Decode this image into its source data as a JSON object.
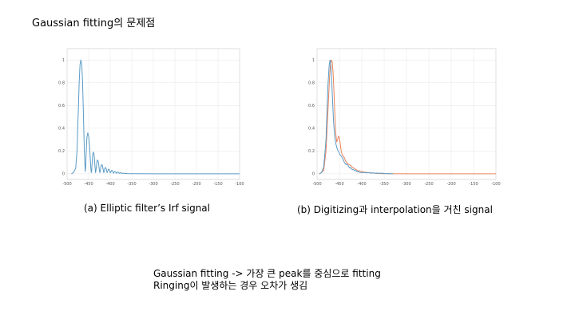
{
  "slide": {
    "title": "Gaussian fitting의 문제점",
    "caption_a": "(a) Elliptic filter’s Irf signal",
    "caption_b": "(b) Digitizing과 interpolation을 거친 signal",
    "note_line1": "Gaussian fitting -> 가장 큰 peak를 중심으로 fitting",
    "note_line2": "Ringing이 발생하는 경우 오차가 생김"
  },
  "colors": {
    "blue": "#5b9bc6",
    "orange": "#e8835a",
    "grid": "#e6e6e6",
    "axis": "#c8c8c8"
  },
  "chart_data": [
    {
      "type": "line",
      "xlim": [
        -500,
        -100
      ],
      "ylim": [
        -0.05,
        1.1
      ],
      "grid": true,
      "xticks": [
        -500,
        -450,
        -400,
        -350,
        -300,
        -250,
        -200,
        -150,
        -100
      ],
      "xtick_labels": [
        "-500",
        "-450",
        "-400",
        "-350",
        "-300",
        "-250",
        "-200",
        "-150",
        "-100"
      ],
      "yticks": [
        0,
        0.2,
        0.4,
        0.6,
        0.8,
        1
      ],
      "ytick_labels": [
        "0",
        "0.2",
        "0.4",
        "0.6",
        "0.8",
        "1"
      ],
      "series": [
        {
          "color": "#5b9bc6",
          "x": [
            -490,
            -485,
            -480,
            -477,
            -474,
            -472,
            -470,
            -468,
            -466,
            -464,
            -462,
            -460,
            -458,
            -457,
            -456,
            -455,
            -454,
            -452,
            -450,
            -448,
            -446,
            -445,
            -444,
            -443,
            -442,
            -441,
            -440,
            -439,
            -438,
            -437,
            -436,
            -435,
            -434,
            -433,
            -432,
            -431,
            -430,
            -429,
            -428,
            -427,
            -426,
            -425,
            -424,
            -423,
            -422,
            -421,
            -420,
            -419,
            -418,
            -417,
            -416,
            -415,
            -414,
            -413,
            -412,
            -411,
            -410,
            -409,
            -408,
            -407,
            -406,
            -405,
            -404,
            -403,
            -402,
            -401,
            -400,
            -399,
            -398,
            -397,
            -396,
            -395,
            -394,
            -393,
            -392,
            -391,
            -390,
            -389,
            -388,
            -387,
            -386,
            -385,
            -384,
            -383,
            -382,
            -381,
            -380,
            -379,
            -378,
            -377,
            -376,
            -375,
            -374,
            -373,
            -372,
            -371,
            -370,
            -368,
            -366,
            -364,
            -362,
            -360,
            -355,
            -350,
            -300,
            -250,
            -200,
            -150,
            -100
          ],
          "y": [
            0,
            0.01,
            0.05,
            0.2,
            0.55,
            0.8,
            0.96,
            1,
            0.96,
            0.8,
            0.5,
            0.2,
            0.02,
            0.05,
            0.15,
            0.25,
            0.32,
            0.36,
            0.33,
            0.25,
            0.12,
            0.05,
            0.01,
            0.03,
            0.09,
            0.15,
            0.18,
            0.19,
            0.18,
            0.15,
            0.1,
            0.05,
            0.01,
            0.03,
            0.07,
            0.1,
            0.12,
            0.12,
            0.11,
            0.09,
            0.06,
            0.03,
            0.01,
            0.02,
            0.05,
            0.07,
            0.08,
            0.08,
            0.07,
            0.05,
            0.03,
            0.01,
            0.02,
            0.04,
            0.05,
            0.055,
            0.05,
            0.04,
            0.02,
            0.01,
            0.02,
            0.03,
            0.04,
            0.04,
            0.035,
            0.025,
            0.01,
            0.01,
            0.02,
            0.028,
            0.03,
            0.028,
            0.02,
            0.01,
            0.005,
            0.012,
            0.018,
            0.02,
            0.018,
            0.012,
            0.005,
            0.005,
            0.01,
            0.014,
            0.015,
            0.013,
            0.008,
            0.003,
            0.004,
            0.008,
            0.01,
            0.009,
            0.006,
            0.002,
            0.003,
            0.005,
            0.006,
            0.004,
            0.002,
            0.003,
            0.003,
            0.002,
            0.001,
            0.001,
            0,
            0,
            0,
            0,
            0
          ]
        }
      ]
    },
    {
      "type": "line",
      "xlim": [
        -500,
        -100
      ],
      "ylim": [
        -0.05,
        1.1
      ],
      "grid": true,
      "xticks": [
        -500,
        -450,
        -400,
        -350,
        -300,
        -250,
        -200,
        -150,
        -100
      ],
      "xtick_labels": [
        "-500",
        "-450",
        "-400",
        "-350",
        "-300",
        "-250",
        "-200",
        "-150",
        "-100"
      ],
      "yticks": [
        0,
        0.2,
        0.4,
        0.6,
        0.8,
        1
      ],
      "ytick_labels": [
        "0",
        "0.2",
        "0.4",
        "0.6",
        "0.8",
        "1"
      ],
      "series": [
        {
          "color": "#e8835a",
          "x": [
            -495,
            -490,
            -485,
            -480,
            -475,
            -472,
            -470,
            -468,
            -466,
            -464,
            -462,
            -460,
            -458,
            -456,
            -454,
            -452,
            -450,
            -448,
            -446,
            -444,
            -442,
            -440,
            -438,
            -436,
            -434,
            -432,
            -430,
            -428,
            -426,
            -424,
            -422,
            -420,
            -418,
            -416,
            -414,
            -412,
            -410,
            -405,
            -400,
            -395,
            -390,
            -385,
            -380,
            -375,
            -370,
            -365,
            -360,
            -350,
            -300,
            -250,
            -200,
            -150,
            -100
          ],
          "y": [
            0,
            0.01,
            0.03,
            0.2,
            0.6,
            0.85,
            0.97,
            1,
            0.98,
            0.88,
            0.7,
            0.5,
            0.35,
            0.28,
            0.3,
            0.33,
            0.32,
            0.26,
            0.2,
            0.17,
            0.16,
            0.15,
            0.13,
            0.11,
            0.1,
            0.09,
            0.085,
            0.08,
            0.075,
            0.07,
            0.06,
            0.055,
            0.05,
            0.045,
            0.04,
            0.035,
            0.03,
            0.025,
            0.02,
            0.015,
            0.012,
            0.01,
            0.008,
            0.006,
            0.005,
            0.003,
            0.002,
            0.001,
            0,
            0,
            0,
            0,
            0
          ]
        },
        {
          "color": "#5b9bc6",
          "x": [
            -495,
            -490,
            -485,
            -480,
            -476,
            -473,
            -471,
            -469,
            -467,
            -465,
            -463,
            -461,
            -459,
            -457,
            -455,
            -453,
            -451,
            -449,
            -447,
            -445,
            -443,
            -441,
            -439,
            -437,
            -435,
            -433,
            -431,
            -429,
            -427,
            -425,
            -423,
            -421,
            -419,
            -417,
            -415,
            -413,
            -411,
            -409,
            -407,
            -405,
            -400,
            -395,
            -390,
            -385,
            -380,
            -375,
            -370,
            -365,
            -360,
            -355,
            -350,
            -345,
            -340,
            -335,
            -330
          ],
          "y": [
            0,
            0.01,
            0.06,
            0.3,
            0.75,
            0.95,
            1,
            0.95,
            0.8,
            0.62,
            0.45,
            0.35,
            0.28,
            0.25,
            0.22,
            0.2,
            0.19,
            0.17,
            0.16,
            0.15,
            0.14,
            0.12,
            0.1,
            0.09,
            0.08,
            0.085,
            0.075,
            0.06,
            0.05,
            0.055,
            0.045,
            0.035,
            0.04,
            0.03,
            0.025,
            0.03,
            0.02,
            0.015,
            0.02,
            0.012,
            0.01,
            0.012,
            0.008,
            0.01,
            0.006,
            0.008,
            0.005,
            0.006,
            0.004,
            0.005,
            0.003,
            0.002,
            0.001,
            0,
            0
          ]
        }
      ]
    }
  ]
}
